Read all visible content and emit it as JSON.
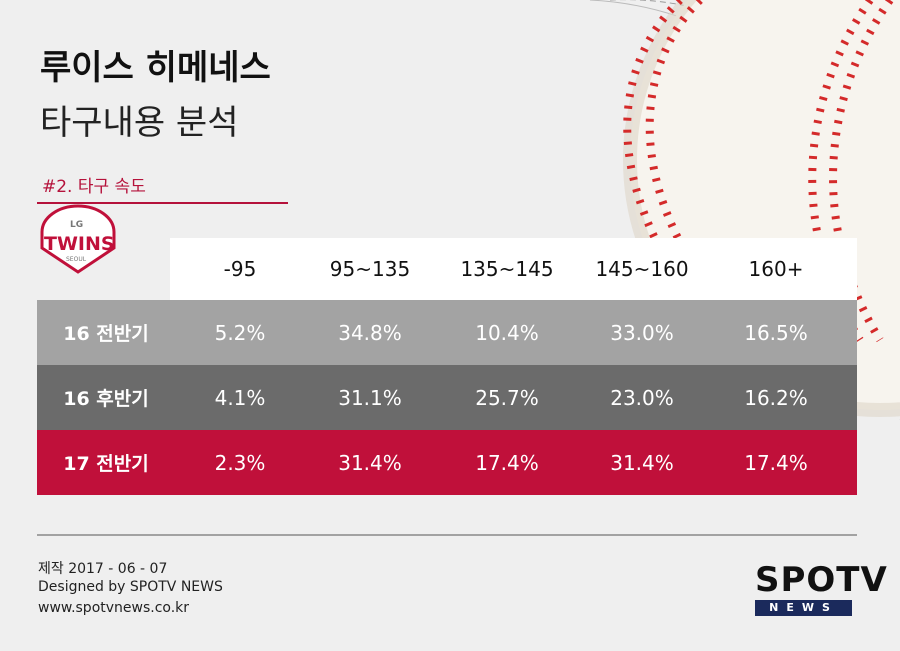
{
  "header": {
    "title": "루이스 히메네스",
    "subtitle": "타구내용 분석",
    "section": "#2. 타구 속도"
  },
  "logo": {
    "top": "LG",
    "name": "TWINS",
    "bottom": "SEOUL"
  },
  "table": {
    "columns": [
      "-95",
      "95~135",
      "135~145",
      "145~160",
      "160+"
    ],
    "rows": [
      {
        "label": "16 전반기",
        "cells": [
          "5.2%",
          "34.8%",
          "10.4%",
          "33.0%",
          "16.5%"
        ]
      },
      {
        "label": "16 후반기",
        "cells": [
          "4.1%",
          "31.1%",
          "25.7%",
          "23.0%",
          "16.2%"
        ]
      },
      {
        "label": "17 전반기",
        "cells": [
          "2.3%",
          "31.4%",
          "17.4%",
          "31.4%",
          "17.4%"
        ]
      }
    ]
  },
  "footer": {
    "lines": [
      "제작 2017 - 06 - 07",
      "Designed by SPOTV NEWS",
      "www.spotvnews.co.kr"
    ]
  },
  "brand": {
    "name": "SPOTV",
    "sub": "NEWS"
  }
}
